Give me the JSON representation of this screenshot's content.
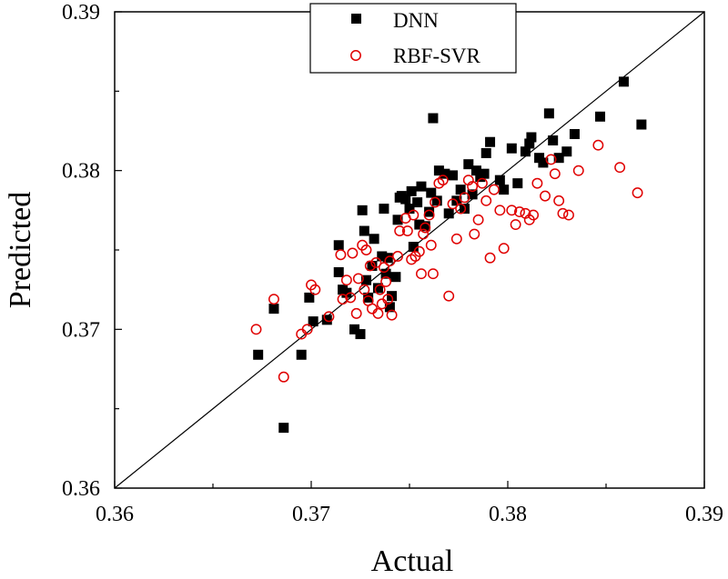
{
  "chart_data": {
    "type": "scatter",
    "title": "",
    "xlabel": "Actual",
    "ylabel": "Predicted",
    "xlim": [
      0.36,
      0.39
    ],
    "ylim": [
      0.36,
      0.39
    ],
    "xticks": [
      "0.36",
      "0.37",
      "0.38",
      "0.39"
    ],
    "yticks": [
      "0.36",
      "0.37",
      "0.38",
      "0.39"
    ],
    "xtick_values": [
      0.36,
      0.37,
      0.38,
      0.39
    ],
    "ytick_values": [
      0.36,
      0.37,
      0.38,
      0.39
    ],
    "reference_line": {
      "from": [
        0.36,
        0.36
      ],
      "to": [
        0.39,
        0.39
      ]
    },
    "legend_position": "top-center",
    "colors": {
      "dnn": "#000000",
      "svr": "#e00000",
      "axis": "#000000"
    },
    "series": [
      {
        "name": "DNN",
        "marker": "filled-square",
        "points": [
          [
            0.3673,
            0.3684
          ],
          [
            0.3681,
            0.3713
          ],
          [
            0.3686,
            0.3638
          ],
          [
            0.3695,
            0.3684
          ],
          [
            0.3699,
            0.372
          ],
          [
            0.3701,
            0.3705
          ],
          [
            0.3708,
            0.3706
          ],
          [
            0.3714,
            0.3736
          ],
          [
            0.3714,
            0.3753
          ],
          [
            0.3716,
            0.3725
          ],
          [
            0.3718,
            0.3723
          ],
          [
            0.3722,
            0.37
          ],
          [
            0.3725,
            0.3697
          ],
          [
            0.3726,
            0.3775
          ],
          [
            0.3727,
            0.3762
          ],
          [
            0.3728,
            0.3731
          ],
          [
            0.3729,
            0.372
          ],
          [
            0.3731,
            0.374
          ],
          [
            0.3732,
            0.3757
          ],
          [
            0.3734,
            0.3726
          ],
          [
            0.3736,
            0.3746
          ],
          [
            0.3737,
            0.3776
          ],
          [
            0.3738,
            0.3735
          ],
          [
            0.3739,
            0.3745
          ],
          [
            0.374,
            0.3714
          ],
          [
            0.3741,
            0.3721
          ],
          [
            0.3743,
            0.3733
          ],
          [
            0.3744,
            0.3769
          ],
          [
            0.3745,
            0.3783
          ],
          [
            0.3746,
            0.3784
          ],
          [
            0.3748,
            0.3782
          ],
          [
            0.375,
            0.3776
          ],
          [
            0.3751,
            0.3787
          ],
          [
            0.3752,
            0.3752
          ],
          [
            0.3754,
            0.378
          ],
          [
            0.3755,
            0.3766
          ],
          [
            0.3756,
            0.379
          ],
          [
            0.3758,
            0.3765
          ],
          [
            0.376,
            0.3774
          ],
          [
            0.3761,
            0.3786
          ],
          [
            0.3762,
            0.3833
          ],
          [
            0.3764,
            0.3781
          ],
          [
            0.3765,
            0.38
          ],
          [
            0.3768,
            0.3798
          ],
          [
            0.377,
            0.3773
          ],
          [
            0.3772,
            0.3797
          ],
          [
            0.3774,
            0.3781
          ],
          [
            0.3776,
            0.3788
          ],
          [
            0.3778,
            0.3776
          ],
          [
            0.378,
            0.3804
          ],
          [
            0.3782,
            0.3785
          ],
          [
            0.3784,
            0.38
          ],
          [
            0.3786,
            0.3796
          ],
          [
            0.3788,
            0.3798
          ],
          [
            0.3789,
            0.3811
          ],
          [
            0.3791,
            0.3818
          ],
          [
            0.3796,
            0.3794
          ],
          [
            0.3798,
            0.3788
          ],
          [
            0.3802,
            0.3814
          ],
          [
            0.3805,
            0.3792
          ],
          [
            0.3809,
            0.3812
          ],
          [
            0.3811,
            0.3817
          ],
          [
            0.3812,
            0.3821
          ],
          [
            0.3816,
            0.3808
          ],
          [
            0.3818,
            0.3805
          ],
          [
            0.3821,
            0.3836
          ],
          [
            0.3823,
            0.3819
          ],
          [
            0.3826,
            0.3808
          ],
          [
            0.383,
            0.3812
          ],
          [
            0.3834,
            0.3823
          ],
          [
            0.3847,
            0.3834
          ],
          [
            0.3859,
            0.3856
          ],
          [
            0.3868,
            0.3829
          ]
        ]
      },
      {
        "name": "RBF-SVR",
        "marker": "open-circle",
        "points": [
          [
            0.3672,
            0.37
          ],
          [
            0.3681,
            0.3719
          ],
          [
            0.3686,
            0.367
          ],
          [
            0.3695,
            0.3697
          ],
          [
            0.3698,
            0.37
          ],
          [
            0.37,
            0.3728
          ],
          [
            0.3702,
            0.3725
          ],
          [
            0.3709,
            0.3708
          ],
          [
            0.3715,
            0.3747
          ],
          [
            0.3716,
            0.3719
          ],
          [
            0.3718,
            0.3731
          ],
          [
            0.372,
            0.372
          ],
          [
            0.3721,
            0.3748
          ],
          [
            0.3723,
            0.371
          ],
          [
            0.3724,
            0.3732
          ],
          [
            0.3726,
            0.3753
          ],
          [
            0.3727,
            0.3725
          ],
          [
            0.3728,
            0.375
          ],
          [
            0.3729,
            0.3718
          ],
          [
            0.373,
            0.374
          ],
          [
            0.3731,
            0.3713
          ],
          [
            0.3733,
            0.3742
          ],
          [
            0.3734,
            0.371
          ],
          [
            0.3735,
            0.3725
          ],
          [
            0.3736,
            0.3716
          ],
          [
            0.3737,
            0.3739
          ],
          [
            0.3738,
            0.373
          ],
          [
            0.3739,
            0.3719
          ],
          [
            0.374,
            0.3743
          ],
          [
            0.3741,
            0.3709
          ],
          [
            0.3744,
            0.3746
          ],
          [
            0.3745,
            0.3762
          ],
          [
            0.3748,
            0.377
          ],
          [
            0.3749,
            0.3762
          ],
          [
            0.3751,
            0.3744
          ],
          [
            0.3752,
            0.3772
          ],
          [
            0.3753,
            0.3746
          ],
          [
            0.3755,
            0.3749
          ],
          [
            0.3756,
            0.3735
          ],
          [
            0.3757,
            0.376
          ],
          [
            0.3758,
            0.3764
          ],
          [
            0.376,
            0.3772
          ],
          [
            0.3761,
            0.3753
          ],
          [
            0.3762,
            0.3735
          ],
          [
            0.3763,
            0.378
          ],
          [
            0.3765,
            0.3792
          ],
          [
            0.3767,
            0.3794
          ],
          [
            0.377,
            0.3721
          ],
          [
            0.3772,
            0.3779
          ],
          [
            0.3774,
            0.3757
          ],
          [
            0.3776,
            0.3776
          ],
          [
            0.3778,
            0.3783
          ],
          [
            0.378,
            0.3794
          ],
          [
            0.3782,
            0.379
          ],
          [
            0.3783,
            0.376
          ],
          [
            0.3785,
            0.3769
          ],
          [
            0.3787,
            0.3792
          ],
          [
            0.3789,
            0.3781
          ],
          [
            0.3791,
            0.3745
          ],
          [
            0.3793,
            0.3788
          ],
          [
            0.3796,
            0.3775
          ],
          [
            0.3798,
            0.3751
          ],
          [
            0.3802,
            0.3775
          ],
          [
            0.3804,
            0.3766
          ],
          [
            0.3806,
            0.3774
          ],
          [
            0.3809,
            0.3773
          ],
          [
            0.3811,
            0.3769
          ],
          [
            0.3813,
            0.3772
          ],
          [
            0.3815,
            0.3792
          ],
          [
            0.3819,
            0.3784
          ],
          [
            0.3822,
            0.3807
          ],
          [
            0.3824,
            0.3798
          ],
          [
            0.3826,
            0.3781
          ],
          [
            0.3828,
            0.3773
          ],
          [
            0.3831,
            0.3772
          ],
          [
            0.3836,
            0.38
          ],
          [
            0.3846,
            0.3816
          ],
          [
            0.3857,
            0.3802
          ],
          [
            0.3866,
            0.3786
          ]
        ]
      }
    ]
  }
}
